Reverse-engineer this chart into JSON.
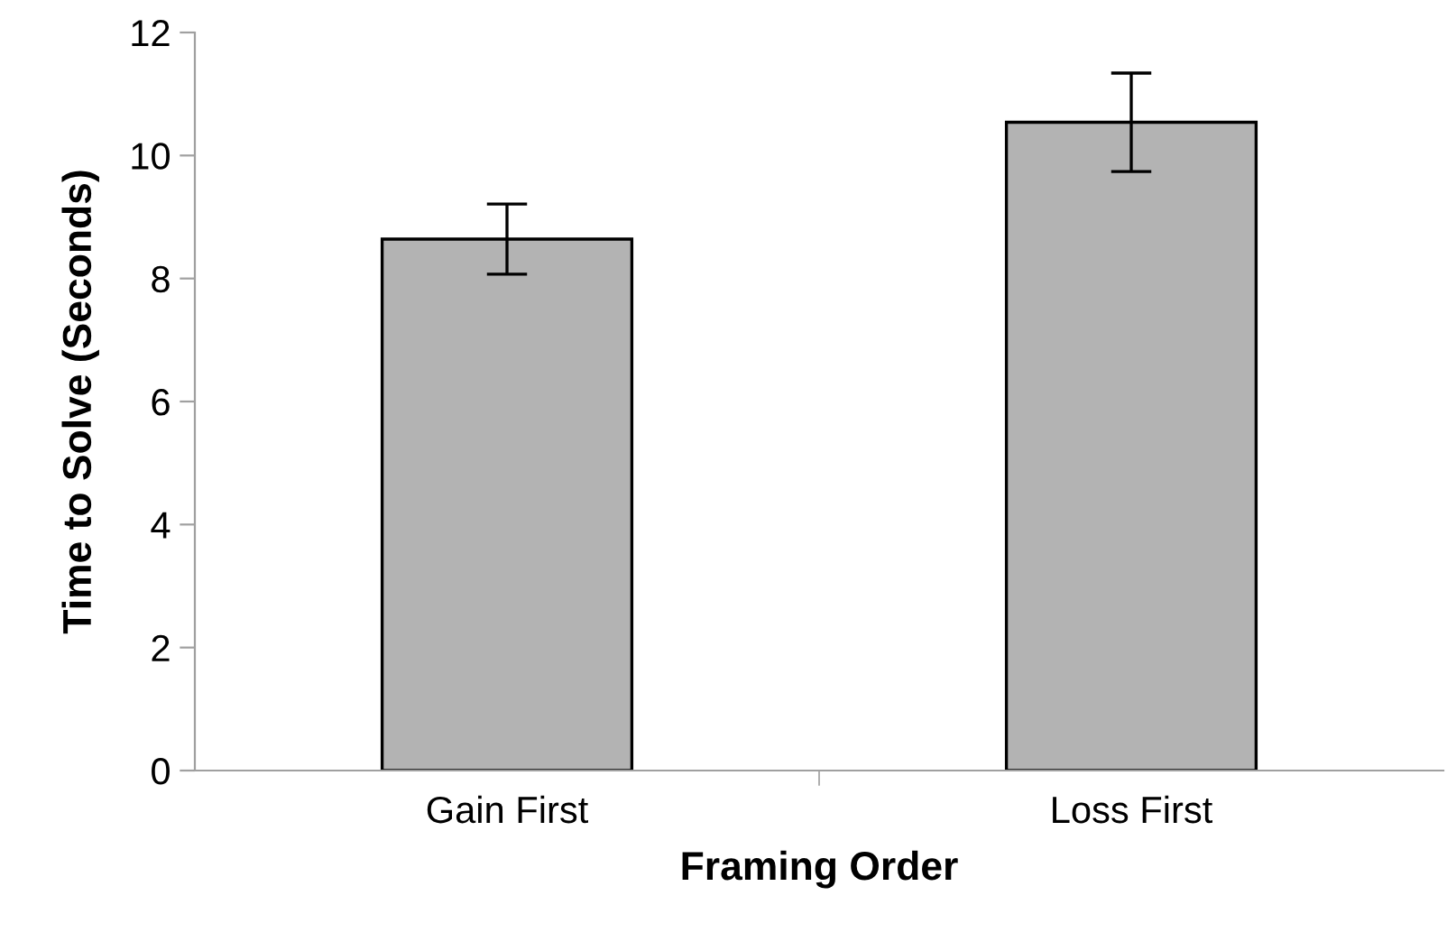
{
  "chart_data": {
    "type": "bar",
    "xlabel": "Framing Order",
    "ylabel": "Time to Solve (Seconds)",
    "categories": [
      "Gain First",
      "Loss First"
    ],
    "series": [
      {
        "color": "#b3b3b3",
        "values": [
          8.64,
          10.54
        ],
        "errors": [
          0.57,
          0.8
        ]
      }
    ],
    "ylim": [
      0,
      12
    ],
    "yticks": [
      0,
      2,
      4,
      6,
      8,
      10,
      12
    ],
    "grid": false,
    "legend": false
  }
}
